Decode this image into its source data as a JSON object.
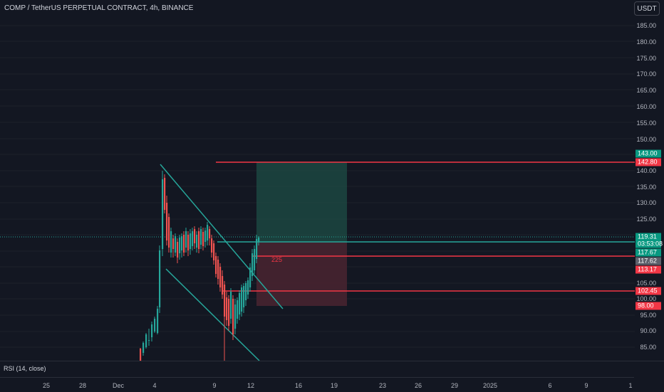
{
  "header": {
    "title": "COMP / TetherUS PERPETUAL CONTRACT, 4h, BINANCE",
    "currency_button": "USDT"
  },
  "price_axis": {
    "ticks": [
      "185.00",
      "180.00",
      "175.00",
      "170.00",
      "165.00",
      "160.00",
      "155.00",
      "150.00",
      "140.00",
      "135.00",
      "130.00",
      "125.00",
      "105.00",
      "100.00",
      "95.00",
      "90.00",
      "85.00"
    ]
  },
  "price_labels": {
    "target": "143.00",
    "resistance": "142.80",
    "last_price": "119.31",
    "countdown": "03:53:08",
    "entry_high": "117.67",
    "entry_low": "117.62",
    "support_1": "113.17",
    "support_2": "102.45",
    "stop": "98.00"
  },
  "position_tool": {
    "value": "225"
  },
  "rsi": {
    "label": "RSI (14, close)"
  },
  "time_axis": {
    "labels": [
      "25",
      "28",
      "Dec",
      "4",
      "9",
      "12",
      "16",
      "19",
      "23",
      "26",
      "29",
      "2025",
      "6",
      "9",
      "1"
    ]
  },
  "colors": {
    "background": "#131722",
    "up": "#26a69a",
    "down": "#ef5350",
    "level_line": "#f23645",
    "trend_line": "#26a69a",
    "target_zone": "#1e4d45",
    "stop_zone": "#4a2430"
  }
}
